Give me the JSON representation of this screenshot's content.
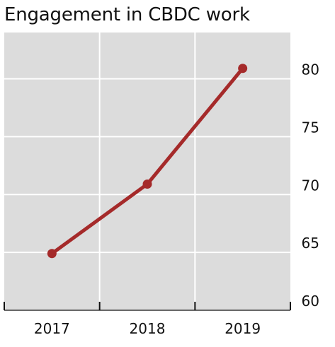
{
  "chart_data": {
    "type": "line",
    "title": "Engagement in CBDC work",
    "x": [
      "2017",
      "2018",
      "2019"
    ],
    "series": [
      {
        "values": [
          64.9,
          70.9,
          80.9
        ]
      }
    ],
    "ylim": [
      60,
      84
    ],
    "yticks": [
      "60",
      "65",
      "70",
      "75",
      "80"
    ],
    "xlabel": "",
    "ylabel": "",
    "y_axis_side": "right",
    "grid": true,
    "legend": "none",
    "colors": {
      "line": "#a52a2a",
      "plot_background": "#dcdcdc",
      "grid": "#ffffff"
    }
  }
}
